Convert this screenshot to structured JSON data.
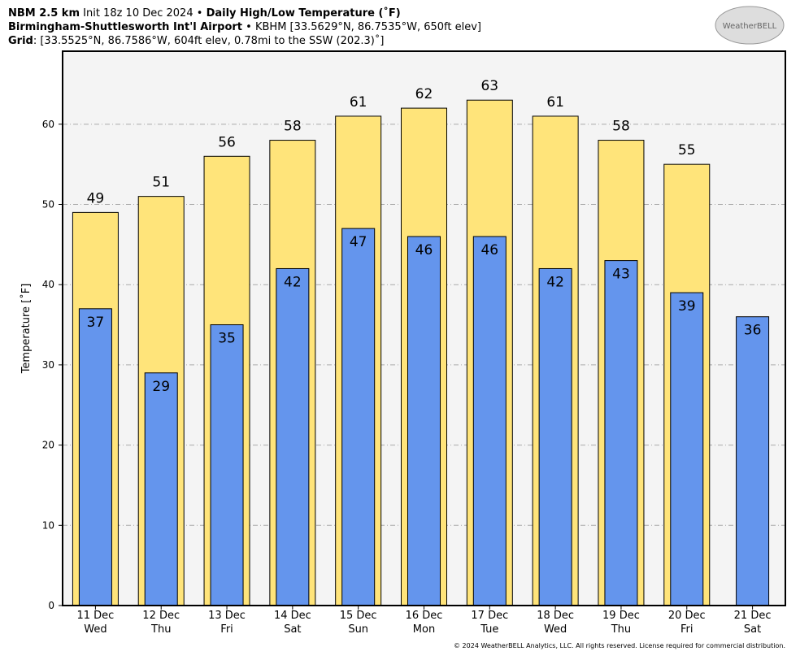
{
  "chart_data": {
    "type": "bar",
    "title": [
      "NBM 2.5 km",
      "Init 18z 10 Dec 2024",
      "•",
      "Daily High/Low Temperature (˚F)"
    ],
    "subtitle": [
      "Birmingham-Shuttlesworth Int'l Airport",
      "• KBHM [33.5629°N, 86.7535°W, 650ft elev]"
    ],
    "grid_info": [
      "Grid",
      ": [33.5525°N, 86.7586°W, 604ft elev, 0.78mi to the SSW (202.3)˚]"
    ],
    "logo": "WeatherBELL",
    "footer": "© 2024 WeatherBELL Analytics, LLC. All rights reserved. License required for commercial distribution.",
    "ylabel": "Temperature [˚F]",
    "categories": [
      "11 Dec",
      "12 Dec",
      "13 Dec",
      "14 Dec",
      "15 Dec",
      "16 Dec",
      "17 Dec",
      "18 Dec",
      "19 Dec",
      "20 Dec",
      "21 Dec"
    ],
    "weekdays": [
      "Wed",
      "Thu",
      "Fri",
      "Sat",
      "Sun",
      "Mon",
      "Tue",
      "Wed",
      "Thu",
      "Fri",
      "Sat"
    ],
    "series": [
      {
        "name": "High",
        "color": "#ffe47a",
        "values": [
          49,
          51,
          56,
          58,
          61,
          62,
          63,
          61,
          58,
          55,
          null
        ]
      },
      {
        "name": "Low",
        "color": "#6495ed",
        "values": [
          37,
          29,
          35,
          42,
          47,
          46,
          46,
          42,
          43,
          39,
          36
        ]
      }
    ],
    "ylim": [
      0,
      69.1
    ],
    "yticks": [
      0,
      10,
      20,
      30,
      40,
      50,
      60
    ],
    "grid": true
  }
}
